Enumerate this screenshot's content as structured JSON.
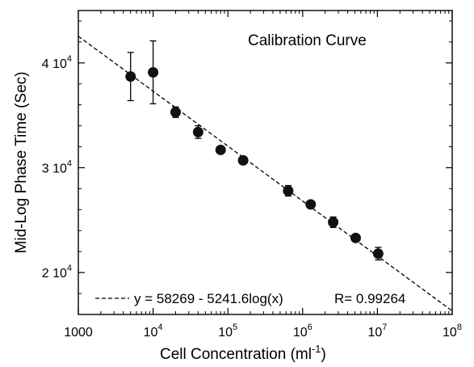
{
  "chart_data": {
    "type": "scatter",
    "title": "Calibration Curve",
    "xlabel": {
      "base": "Cell Concentration (ml",
      "sup": "-1",
      "close": ")"
    },
    "ylabel": "Mid-Log Phase Time (Sec)",
    "x_scale": "log",
    "xlim": [
      1000,
      100000000
    ],
    "ylim": [
      16000,
      45000
    ],
    "x_ticks": [
      {
        "value": 1000,
        "base": "1000",
        "sup": ""
      },
      {
        "value": 10000,
        "base": "10",
        "sup": "4"
      },
      {
        "value": 100000,
        "base": "10",
        "sup": "5"
      },
      {
        "value": 1000000,
        "base": "10",
        "sup": "6"
      },
      {
        "value": 10000000,
        "base": "10",
        "sup": "7"
      },
      {
        "value": 100000000,
        "base": "10",
        "sup": "8"
      }
    ],
    "y_ticks": [
      {
        "value": 20000,
        "base": "2 10",
        "sup": "4"
      },
      {
        "value": 30000,
        "base": "3 10",
        "sup": "4"
      },
      {
        "value": 40000,
        "base": "4 10",
        "sup": "4"
      }
    ],
    "points": [
      {
        "x": 5000,
        "y": 38700,
        "err": 2300
      },
      {
        "x": 10000,
        "y": 39100,
        "err": 3000
      },
      {
        "x": 20000,
        "y": 35300,
        "err": 500
      },
      {
        "x": 40000,
        "y": 33400,
        "err": 600
      },
      {
        "x": 80000,
        "y": 31700,
        "err": 300
      },
      {
        "x": 160000,
        "y": 30700,
        "err": 300
      },
      {
        "x": 640000,
        "y": 27800,
        "err": 500
      },
      {
        "x": 1280000,
        "y": 26500,
        "err": 300
      },
      {
        "x": 2560000,
        "y": 24800,
        "err": 500
      },
      {
        "x": 5120000,
        "y": 23300,
        "err": 300
      },
      {
        "x": 10240000,
        "y": 21800,
        "err": 600
      }
    ],
    "fit": {
      "intercept": 58269,
      "slope": -5241.6,
      "style": "dashed"
    },
    "legend": {
      "equation": "y = 58269 - 5241.6log(x)",
      "r": "R= 0.99264",
      "position": "bottom"
    }
  }
}
